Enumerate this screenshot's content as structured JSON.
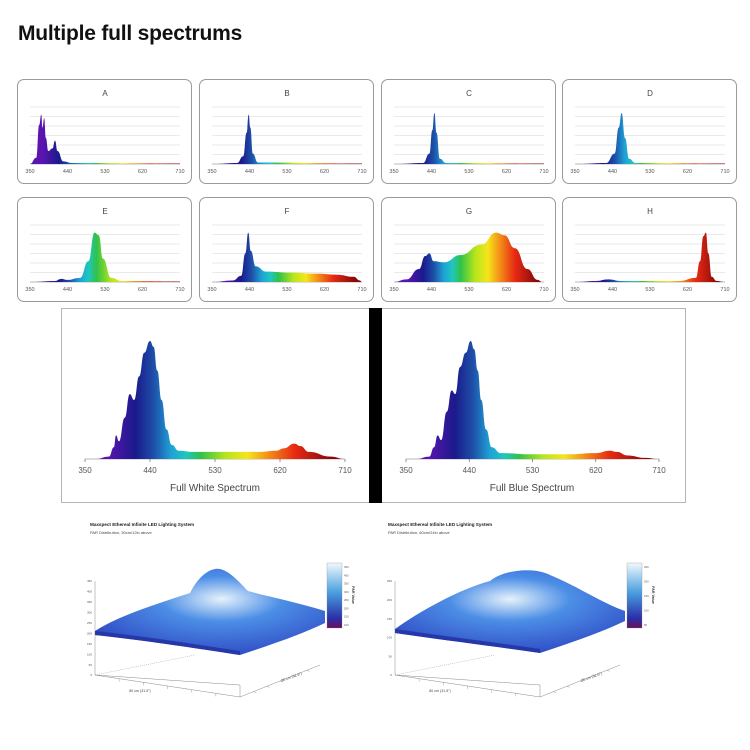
{
  "heading": "Multiple full spectrums",
  "chart_data": [
    {
      "type": "area",
      "title": "A",
      "x_ticks": [
        350,
        440,
        530,
        620,
        710
      ],
      "series": [
        {
          "values": [
            [
              350,
              0
            ],
            [
              365,
              0.12
            ],
            [
              372,
              0.75
            ],
            [
              377,
              0.95
            ],
            [
              380,
              0.7
            ],
            [
              384,
              0.88
            ],
            [
              388,
              0.5
            ],
            [
              394,
              0.25
            ],
            [
              404,
              0.3
            ],
            [
              410,
              0.45
            ],
            [
              416,
              0.25
            ],
            [
              430,
              0.05
            ],
            [
              450,
              0.02
            ],
            [
              710,
              0.01
            ]
          ]
        }
      ]
    },
    {
      "type": "area",
      "title": "B",
      "x_ticks": [
        350,
        440,
        530,
        620,
        710
      ],
      "series": [
        {
          "values": [
            [
              350,
              0
            ],
            [
              410,
              0.02
            ],
            [
              425,
              0.15
            ],
            [
              433,
              0.6
            ],
            [
              438,
              0.95
            ],
            [
              442,
              0.7
            ],
            [
              448,
              0.2
            ],
            [
              460,
              0.03
            ],
            [
              710,
              0.01
            ]
          ]
        }
      ]
    },
    {
      "type": "area",
      "title": "C",
      "x_ticks": [
        350,
        440,
        530,
        620,
        710
      ],
      "series": [
        {
          "values": [
            [
              350,
              0
            ],
            [
              420,
              0.02
            ],
            [
              435,
              0.2
            ],
            [
              442,
              0.65
            ],
            [
              447,
              0.98
            ],
            [
              452,
              0.6
            ],
            [
              460,
              0.1
            ],
            [
              475,
              0.02
            ],
            [
              710,
              0.01
            ]
          ]
        }
      ]
    },
    {
      "type": "area",
      "title": "D",
      "x_ticks": [
        350,
        440,
        530,
        620,
        710
      ],
      "series": [
        {
          "values": [
            [
              350,
              0
            ],
            [
              425,
              0.02
            ],
            [
              445,
              0.2
            ],
            [
              455,
              0.7
            ],
            [
              462,
              0.98
            ],
            [
              470,
              0.5
            ],
            [
              480,
              0.1
            ],
            [
              495,
              0.02
            ],
            [
              710,
              0.01
            ]
          ]
        }
      ]
    },
    {
      "type": "area",
      "title": "E",
      "x_ticks": [
        350,
        440,
        530,
        620,
        710
      ],
      "series": [
        {
          "values": [
            [
              350,
              0
            ],
            [
              410,
              0.02
            ],
            [
              425,
              0.06
            ],
            [
              440,
              0.04
            ],
            [
              470,
              0.08
            ],
            [
              490,
              0.4
            ],
            [
              505,
              0.95
            ],
            [
              515,
              0.9
            ],
            [
              525,
              0.45
            ],
            [
              545,
              0.08
            ],
            [
              570,
              0.02
            ],
            [
              710,
              0.01
            ]
          ]
        }
      ]
    },
    {
      "type": "area",
      "title": "F",
      "x_ticks": [
        350,
        440,
        530,
        620,
        710
      ],
      "series": [
        {
          "values": [
            [
              350,
              0
            ],
            [
              400,
              0.03
            ],
            [
              420,
              0.12
            ],
            [
              430,
              0.55
            ],
            [
              437,
              0.95
            ],
            [
              443,
              0.6
            ],
            [
              455,
              0.3
            ],
            [
              480,
              0.2
            ],
            [
              540,
              0.18
            ],
            [
              600,
              0.16
            ],
            [
              650,
              0.14
            ],
            [
              690,
              0.1
            ],
            [
              705,
              0.03
            ],
            [
              710,
              0
            ]
          ]
        }
      ]
    },
    {
      "type": "area",
      "title": "G",
      "x_ticks": [
        350,
        440,
        530,
        620,
        710
      ],
      "series": [
        {
          "values": [
            [
              350,
              0
            ],
            [
              380,
              0.05
            ],
            [
              410,
              0.25
            ],
            [
              425,
              0.5
            ],
            [
              435,
              0.55
            ],
            [
              445,
              0.4
            ],
            [
              470,
              0.38
            ],
            [
              510,
              0.52
            ],
            [
              560,
              0.72
            ],
            [
              595,
              0.95
            ],
            [
              615,
              0.9
            ],
            [
              640,
              0.65
            ],
            [
              670,
              0.25
            ],
            [
              695,
              0.04
            ],
            [
              705,
              0
            ]
          ]
        }
      ]
    },
    {
      "type": "area",
      "title": "H",
      "x_ticks": [
        350,
        440,
        530,
        620,
        710
      ],
      "series": [
        {
          "values": [
            [
              350,
              0
            ],
            [
              400,
              0.02
            ],
            [
              430,
              0.05
            ],
            [
              460,
              0.02
            ],
            [
              600,
              0.02
            ],
            [
              640,
              0.08
            ],
            [
              650,
              0.4
            ],
            [
              658,
              0.88
            ],
            [
              664,
              0.95
            ],
            [
              670,
              0.55
            ],
            [
              678,
              0.1
            ],
            [
              690,
              0.02
            ],
            [
              710,
              0
            ]
          ]
        }
      ]
    },
    {
      "type": "area",
      "title": "Full White Spectrum",
      "x_ticks": [
        350,
        440,
        530,
        620,
        710
      ],
      "series": [
        {
          "values": [
            [
              365,
              0
            ],
            [
              383,
              0.02
            ],
            [
              390,
              0.1
            ],
            [
              393,
              0.2
            ],
            [
              397,
              0.15
            ],
            [
              405,
              0.35
            ],
            [
              412,
              0.55
            ],
            [
              418,
              0.5
            ],
            [
              425,
              0.7
            ],
            [
              432,
              0.9
            ],
            [
              440,
              1.0
            ],
            [
              445,
              0.95
            ],
            [
              450,
              0.75
            ],
            [
              456,
              0.5
            ],
            [
              463,
              0.25
            ],
            [
              470,
              0.12
            ],
            [
              480,
              0.07
            ],
            [
              500,
              0.06
            ],
            [
              530,
              0.06
            ],
            [
              560,
              0.06
            ],
            [
              590,
              0.06
            ],
            [
              615,
              0.07
            ],
            [
              625,
              0.09
            ],
            [
              640,
              0.13
            ],
            [
              648,
              0.11
            ],
            [
              660,
              0.06
            ],
            [
              690,
              0.02
            ],
            [
              710,
              0
            ]
          ]
        }
      ]
    },
    {
      "type": "area",
      "title": "Full Blue Spectrum",
      "x_ticks": [
        350,
        440,
        530,
        620,
        710
      ],
      "series": [
        {
          "values": [
            [
              365,
              0
            ],
            [
              383,
              0.02
            ],
            [
              390,
              0.1
            ],
            [
              395,
              0.2
            ],
            [
              400,
              0.16
            ],
            [
              408,
              0.4
            ],
            [
              415,
              0.58
            ],
            [
              420,
              0.55
            ],
            [
              427,
              0.78
            ],
            [
              435,
              0.9
            ],
            [
              442,
              1.0
            ],
            [
              447,
              0.93
            ],
            [
              452,
              0.75
            ],
            [
              457,
              0.5
            ],
            [
              464,
              0.25
            ],
            [
              472,
              0.1
            ],
            [
              485,
              0.05
            ],
            [
              530,
              0.04
            ],
            [
              580,
              0.04
            ],
            [
              620,
              0.05
            ],
            [
              640,
              0.07
            ],
            [
              650,
              0.06
            ],
            [
              665,
              0.03
            ],
            [
              690,
              0.01
            ],
            [
              710,
              0
            ]
          ]
        }
      ]
    },
    {
      "type": "surface",
      "title": "Maxspect Ethereal Infinite LED Lighting System",
      "subtitle": "PAR Distribution, 30cm/12in above",
      "x_label": "80 cm (31.5\")",
      "y_label": "80 cm (31.5\")",
      "colorbar_label": "PAR Value",
      "colorbar_ticks": [
        "450",
        "400",
        "350",
        "300",
        "250",
        "200",
        "150",
        "100"
      ],
      "z_axis_ticks": [
        "450",
        "400",
        "350",
        "300",
        "250",
        "200",
        "150",
        "100",
        "50",
        "0"
      ],
      "peak": "center"
    },
    {
      "type": "surface",
      "title": "Maxspect Ethereal Infinite LED Lighting System",
      "subtitle": "PAR Distribution, 60cm/24in above",
      "x_label": "80 cm (31.5\")",
      "y_label": "80 cm (31.5\")",
      "colorbar_label": "PAR Value",
      "colorbar_ticks": [
        "250",
        "200",
        "150",
        "100",
        "50"
      ],
      "z_axis_ticks": [
        "250",
        "200",
        "150",
        "100",
        "50",
        "0"
      ],
      "peak": "broad"
    }
  ],
  "spectrum_gradient": [
    "#5b14b0",
    "#1a1a8c",
    "#1e4fa8",
    "#1fa3d6",
    "#1fc6c0",
    "#2fc24a",
    "#b7e51c",
    "#f5e51a",
    "#f49a18",
    "#e82a13",
    "#8a0a0a"
  ],
  "surface_colors": {
    "low": "#2a3fbf",
    "mid": "#4c8ee6",
    "high": "#e6f2fb"
  }
}
